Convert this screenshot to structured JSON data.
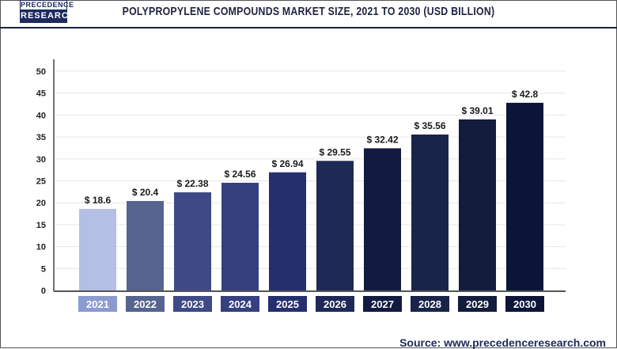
{
  "logo": {
    "line1": "PRECEDENCE",
    "line2": "RESEARCH"
  },
  "title": "POLYPROPYLENE COMPOUNDS MARKET SIZE, 2021 TO 2030 (USD BILLION)",
  "source": "Source: www.precedenceresearch.com",
  "chart_data": {
    "type": "bar",
    "title": "POLYPROPYLENE COMPOUNDS MARKET SIZE, 2021 TO 2030 (USD BILLION)",
    "categories": [
      "2021",
      "2022",
      "2023",
      "2024",
      "2025",
      "2026",
      "2027",
      "2028",
      "2029",
      "2030"
    ],
    "values": [
      18.6,
      20.4,
      22.38,
      24.56,
      26.94,
      29.55,
      32.42,
      35.56,
      39.01,
      42.8
    ],
    "data_labels": [
      "$ 18.6",
      "$ 20.4",
      "$ 22.38",
      "$ 24.56",
      "$ 26.94",
      "$ 29.55",
      "$ 32.42",
      "$ 35.56",
      "$ 39.01",
      "$ 42.8"
    ],
    "ylim": [
      0,
      50
    ],
    "yticks": [
      0,
      5,
      10,
      15,
      20,
      25,
      30,
      35,
      40,
      45,
      50
    ],
    "grid": true,
    "bar_colors": [
      "#b4bfe6",
      "#56648f",
      "#3e4a86",
      "#35407e",
      "#262f6e",
      "#1e2a55",
      "#111a40",
      "#18244a",
      "#121c3c",
      "#0c1538"
    ],
    "label_box_colors": [
      "#8d9ad0",
      "#56648f",
      "#3e4a86",
      "#35407e",
      "#262f6e",
      "#1e2a55",
      "#111a40",
      "#18244a",
      "#121c3c",
      "#0c1538"
    ]
  }
}
